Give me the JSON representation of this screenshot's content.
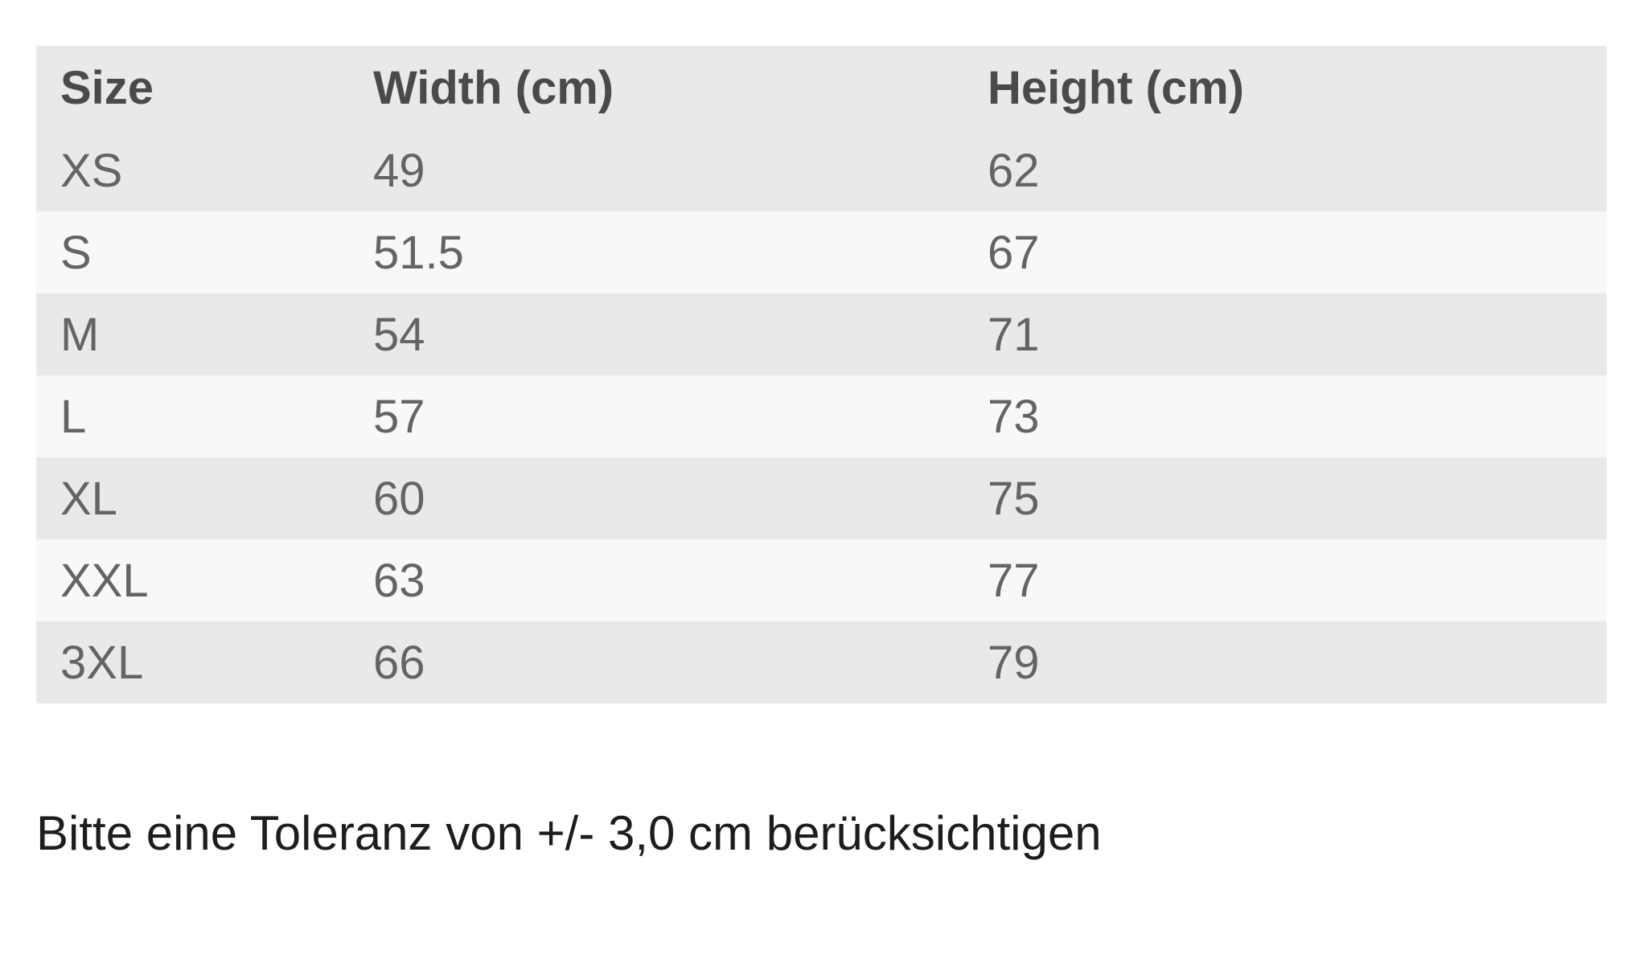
{
  "size_chart": {
    "columns": [
      {
        "label": "Size"
      },
      {
        "label": "Width (cm)"
      },
      {
        "label": "Height (cm)"
      }
    ],
    "rows": [
      {
        "size": "XS",
        "width": "49",
        "height": "62"
      },
      {
        "size": "S",
        "width": "51.5",
        "height": "67"
      },
      {
        "size": "M",
        "width": "54",
        "height": "71"
      },
      {
        "size": "L",
        "width": "57",
        "height": "73"
      },
      {
        "size": "XL",
        "width": "60",
        "height": "75"
      },
      {
        "size": "XXL",
        "width": "63",
        "height": "77"
      },
      {
        "size": "3XL",
        "width": "66",
        "height": "79"
      }
    ],
    "colors": {
      "header_bg": "#e9e9e9",
      "row_light_bg": "#f8f8f8",
      "row_dark_bg": "#e9e9e9",
      "header_text": "#4a4a4a",
      "cell_text": "#646464"
    }
  },
  "note": {
    "text": "Bitte eine Toleranz von +/- 3,0 cm berücksichtigen",
    "color": "#1d1d1d"
  }
}
